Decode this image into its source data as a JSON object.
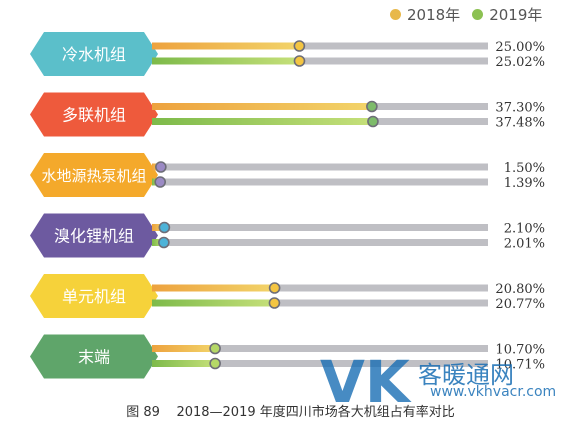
{
  "chart_data": {
    "type": "bar",
    "orientation": "horizontal",
    "title": "",
    "categories": [
      "冷水机组",
      "多联机组",
      "水地源热泵机组",
      "溴化锂机组",
      "单元机组",
      "末端"
    ],
    "series": [
      {
        "name": "2018年",
        "values": [
          25.0,
          37.3,
          1.5,
          2.1,
          20.8,
          10.7
        ],
        "labels": [
          "25.00%",
          "37.30%",
          "1.50%",
          "2.10%",
          "20.80%",
          "10.70%"
        ]
      },
      {
        "name": "2019年",
        "values": [
          25.02,
          37.48,
          1.39,
          2.01,
          20.77,
          10.71
        ],
        "labels": [
          "25.02%",
          "37.48%",
          "1.39%",
          "2.01%",
          "20.77%",
          "10.71%"
        ]
      }
    ],
    "xlim": [
      0,
      57
    ],
    "category_colors": [
      "#5bbfca",
      "#ee5a3c",
      "#f4a92b",
      "#6d5aa0",
      "#f6d23a",
      "#5fa56a"
    ],
    "series_colors": [
      "#e8b84a",
      "#8cc152"
    ],
    "track_color": "#bfbfc4",
    "marker_colors": [
      "#f4c542",
      "#f4c542",
      "#7dbb6a",
      "#7dbb6a",
      "#9b8ac4",
      "#9b8ac4",
      "#4db3d8",
      "#4db3d8",
      "#f4c542",
      "#f4c542",
      "#b5d867",
      "#b5d867"
    ],
    "legend_position": "top-right",
    "grid": false
  },
  "legend": {
    "items": [
      {
        "label": "2018年",
        "color": "#e8b84a"
      },
      {
        "label": "2019年",
        "color": "#8cc152"
      }
    ]
  },
  "caption": "图 89    2018—2019 年度四川市场各大机组占有率对比",
  "watermark": {
    "brand": "客暖通网",
    "url": "www.vkhvacr.com",
    "logo_text": "VK"
  }
}
